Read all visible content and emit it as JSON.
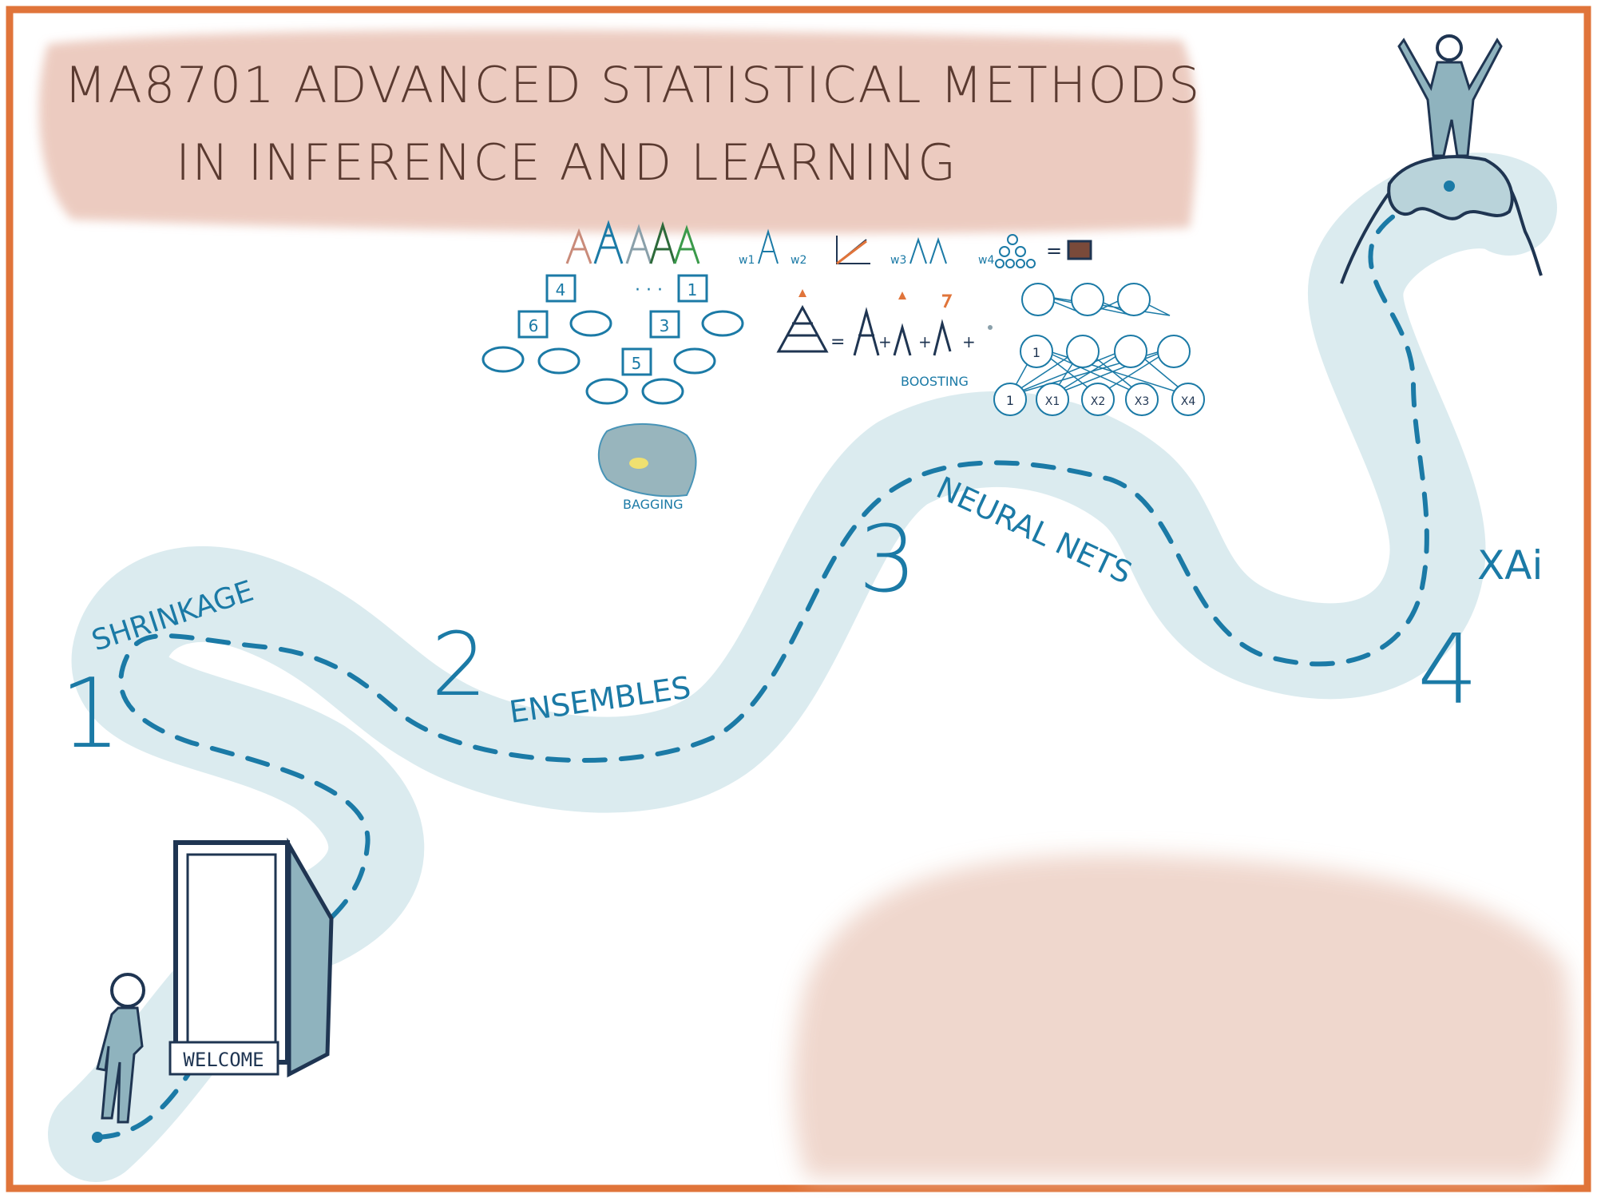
{
  "title": {
    "line1": "MA8701 ADVANCED STATISTICAL METHODS",
    "line2": "IN INFERENCE AND LEARNING"
  },
  "door": {
    "sign": "WELCOME"
  },
  "stages": [
    {
      "number": "1",
      "label": "SHRINKAGE"
    },
    {
      "number": "2",
      "label": "ENSEMBLES"
    },
    {
      "number": "3",
      "label": "NEURAL NETS"
    },
    {
      "number": "4",
      "label": "XAi"
    }
  ],
  "sketches": {
    "trees": {
      "nodes_left": [
        "4",
        "6"
      ],
      "nodes_right": [
        "1",
        "3"
      ],
      "node_bottom": "5",
      "ellipsis": "· · ·"
    },
    "bagging": {
      "label": "BAGGING"
    },
    "boosting": {
      "label": "BOOSTING"
    },
    "stacking": {
      "weights": [
        "w1",
        "w2",
        "w3",
        "w4"
      ]
    },
    "network": {
      "hidden": [
        "1"
      ],
      "inputs": [
        "1",
        "X1",
        "X2",
        "X3",
        "X4"
      ]
    }
  },
  "colors": {
    "frame": "#e0743a",
    "path": "#d9eaee",
    "accent": "#1b7aa6",
    "title_wash": "#e9c3b6",
    "title_text": "#5a3a30",
    "figure": "#8fb3be",
    "navy": "#1f3552"
  },
  "icons": [
    "door-icon",
    "walking-person-icon",
    "celebrating-person-icon",
    "mountain-icon",
    "tree-icon",
    "neural-network-icon"
  ]
}
